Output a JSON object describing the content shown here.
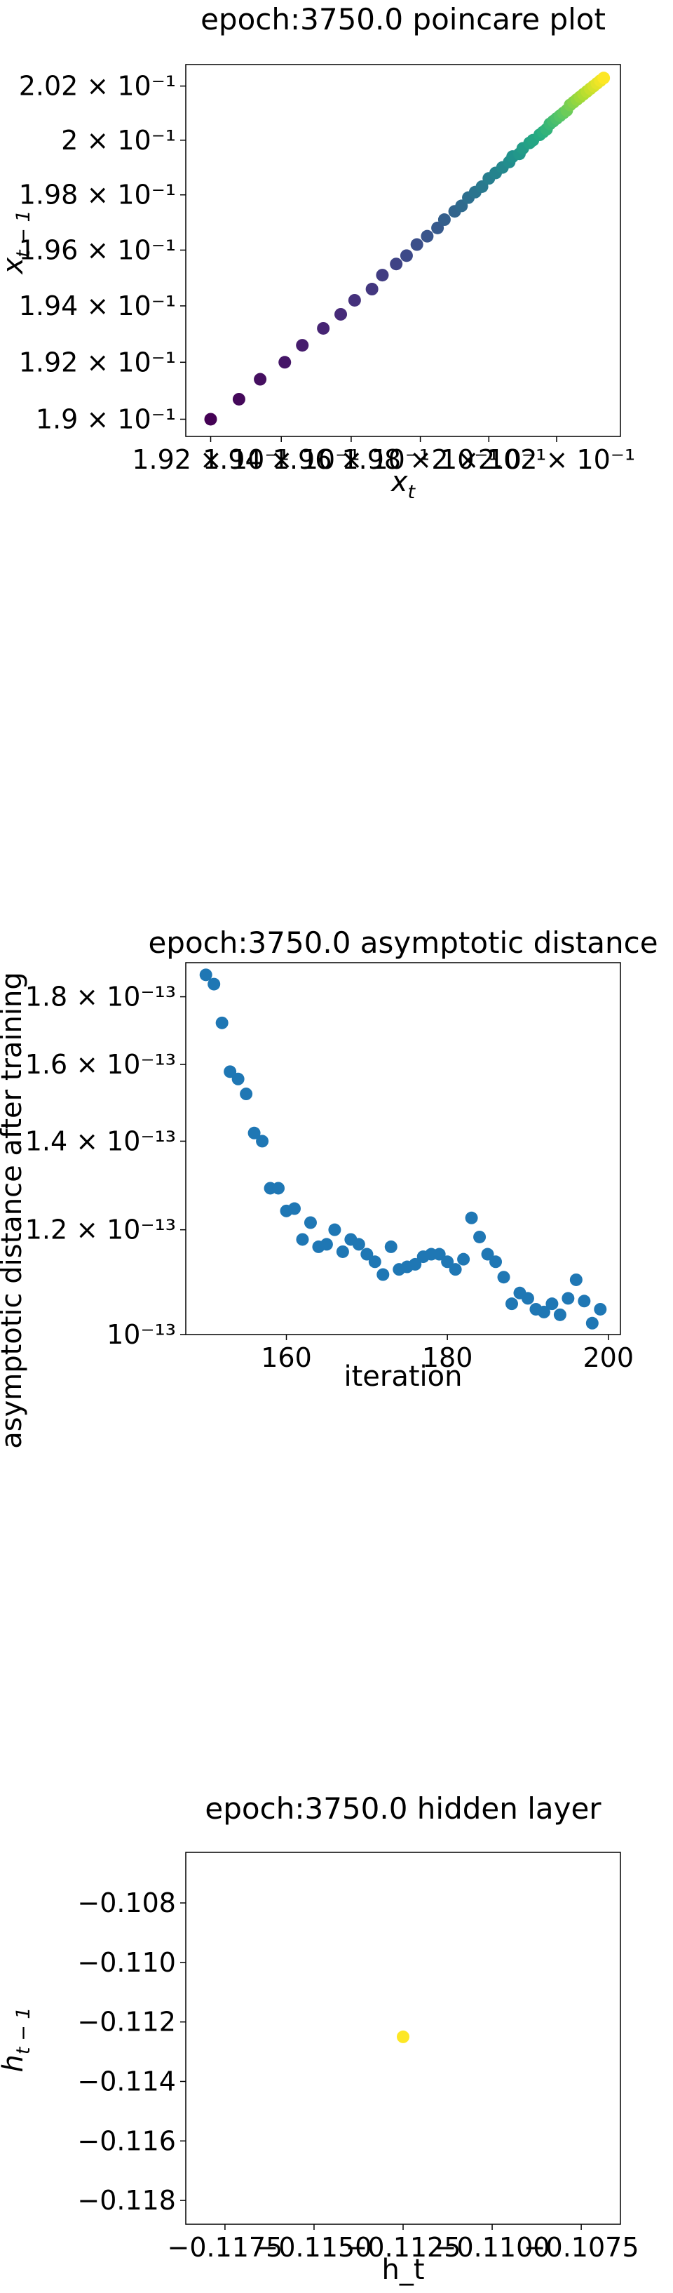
{
  "chart_data": [
    {
      "type": "scatter",
      "title": "epoch:3750.0 poincare plot",
      "xlabel": "x_t",
      "ylabel": "x_{t-1}",
      "xscale": "log",
      "yscale": "log",
      "xlim": [
        0.1913,
        0.2039
      ],
      "ylim": [
        0.1894,
        0.2028
      ],
      "colormap": "viridis",
      "x_tick_labels": [
        "1.92 × 10⁻¹",
        "1.94 × 10⁻¹",
        "1.96 × 10⁻¹",
        "1.98 × 10⁻¹",
        "2 × 10⁻¹",
        "2.02 × 10⁻¹"
      ],
      "x_ticks": [
        0.192,
        0.194,
        0.196,
        0.198,
        0.2,
        0.202
      ],
      "y_tick_labels": [
        "1.9 × 10⁻¹",
        "1.92 × 10⁻¹",
        "1.94 × 10⁻¹",
        "1.96 × 10⁻¹",
        "1.98 × 10⁻¹",
        "2 × 10⁻¹",
        "2.02 × 10⁻¹"
      ],
      "y_ticks": [
        0.19,
        0.192,
        0.194,
        0.196,
        0.198,
        0.2,
        0.202
      ],
      "x": [
        0.192,
        0.1928,
        0.1934,
        0.1941,
        0.1946,
        0.1952,
        0.1957,
        0.1961,
        0.1966,
        0.1969,
        0.1973,
        0.1976,
        0.1979,
        0.1982,
        0.1985,
        0.1987,
        0.199,
        0.1992,
        0.1994,
        0.1996,
        0.1998,
        0.2,
        0.2002,
        0.2004,
        0.2006,
        0.2007,
        0.2009,
        0.201,
        0.2012,
        0.2013,
        0.2015,
        0.2016,
        0.2017,
        0.2018,
        0.2019,
        0.202,
        0.2021,
        0.2022,
        0.2023,
        0.2024,
        0.2025,
        0.2026,
        0.2027,
        0.2028,
        0.2029,
        0.203,
        0.2031,
        0.2032,
        0.2033,
        0.2034
      ],
      "y": [
        0.19,
        0.1907,
        0.1914,
        0.192,
        0.1926,
        0.1932,
        0.1937,
        0.1942,
        0.1946,
        0.1951,
        0.1955,
        0.1958,
        0.1962,
        0.1965,
        0.1968,
        0.1971,
        0.1974,
        0.1976,
        0.1979,
        0.1981,
        0.1983,
        0.1986,
        0.1988,
        0.199,
        0.1992,
        0.1994,
        0.1995,
        0.1997,
        0.1999,
        0.2,
        0.2002,
        0.2003,
        0.2004,
        0.2006,
        0.2007,
        0.2008,
        0.2009,
        0.201,
        0.2011,
        0.2013,
        0.2014,
        0.2015,
        0.2016,
        0.2017,
        0.2018,
        0.2019,
        0.202,
        0.2021,
        0.2022,
        0.2023
      ]
    },
    {
      "type": "scatter",
      "title": "epoch:3750.0 asymptotic distance",
      "xlabel": "iteration",
      "ylabel": "asymptotic distance after training",
      "yscale": "log",
      "xlim": [
        147.5,
        201.5
      ],
      "ylim": [
        1e-13,
        1.91e-13
      ],
      "color": "#1f77b4",
      "x_ticks": [
        160,
        180,
        200
      ],
      "x_tick_labels": [
        "160",
        "180",
        "200"
      ],
      "y_ticks": [
        1e-13,
        1.2e-13,
        1.4e-13,
        1.6e-13,
        1.8e-13
      ],
      "y_tick_labels": [
        "10⁻¹³",
        "1.2 × 10⁻¹³",
        "1.4 × 10⁻¹³",
        "1.6 × 10⁻¹³",
        "1.8 × 10⁻¹³"
      ],
      "x": [
        150,
        151,
        152,
        153,
        154,
        155,
        156,
        157,
        158,
        159,
        160,
        161,
        162,
        163,
        164,
        165,
        166,
        167,
        168,
        169,
        170,
        171,
        172,
        173,
        174,
        175,
        176,
        177,
        178,
        179,
        180,
        181,
        182,
        183,
        184,
        185,
        186,
        187,
        188,
        189,
        190,
        191,
        192,
        193,
        194,
        195,
        196,
        197,
        198,
        199
      ],
      "y": [
        1.87e-13,
        1.84e-13,
        1.72e-13,
        1.58e-13,
        1.56e-13,
        1.52e-13,
        1.42e-13,
        1.4e-13,
        1.29e-13,
        1.29e-13,
        1.24e-13,
        1.245e-13,
        1.18e-13,
        1.215e-13,
        1.165e-13,
        1.17e-13,
        1.2e-13,
        1.155e-13,
        1.18e-13,
        1.17e-13,
        1.15e-13,
        1.135e-13,
        1.11e-13,
        1.165e-13,
        1.12e-13,
        1.125e-13,
        1.13e-13,
        1.145e-13,
        1.15e-13,
        1.15e-13,
        1.135e-13,
        1.12e-13,
        1.14e-13,
        1.225e-13,
        1.185e-13,
        1.15e-13,
        1.135e-13,
        1.105e-13,
        1.055e-13,
        1.075e-13,
        1.065e-13,
        1.045e-13,
        1.04e-13,
        1.055e-13,
        1.035e-13,
        1.065e-13,
        1.1e-13,
        1.06e-13,
        1.02e-13,
        1.045e-13
      ]
    },
    {
      "type": "scatter",
      "title": "epoch:3750.0 hidden layer",
      "xlabel": "h_t",
      "ylabel": "h_{t-1}",
      "xlim": [
        -0.1186,
        -0.1064
      ],
      "ylim": [
        -0.1188,
        -0.1063
      ],
      "color": "#fde725",
      "x_ticks": [
        -0.1175,
        -0.115,
        -0.1125,
        -0.11,
        -0.1075
      ],
      "x_tick_labels": [
        "−0.1175",
        "−0.1150",
        "−0.1125",
        "−0.1100",
        "−0.1075"
      ],
      "y_ticks": [
        -0.118,
        -0.116,
        -0.114,
        -0.112,
        -0.11,
        -0.108
      ],
      "y_tick_labels": [
        "−0.118",
        "−0.116",
        "−0.114",
        "−0.112",
        "−0.110",
        "−0.108"
      ],
      "x": [
        -0.1125
      ],
      "y": [
        -0.1125
      ]
    }
  ]
}
